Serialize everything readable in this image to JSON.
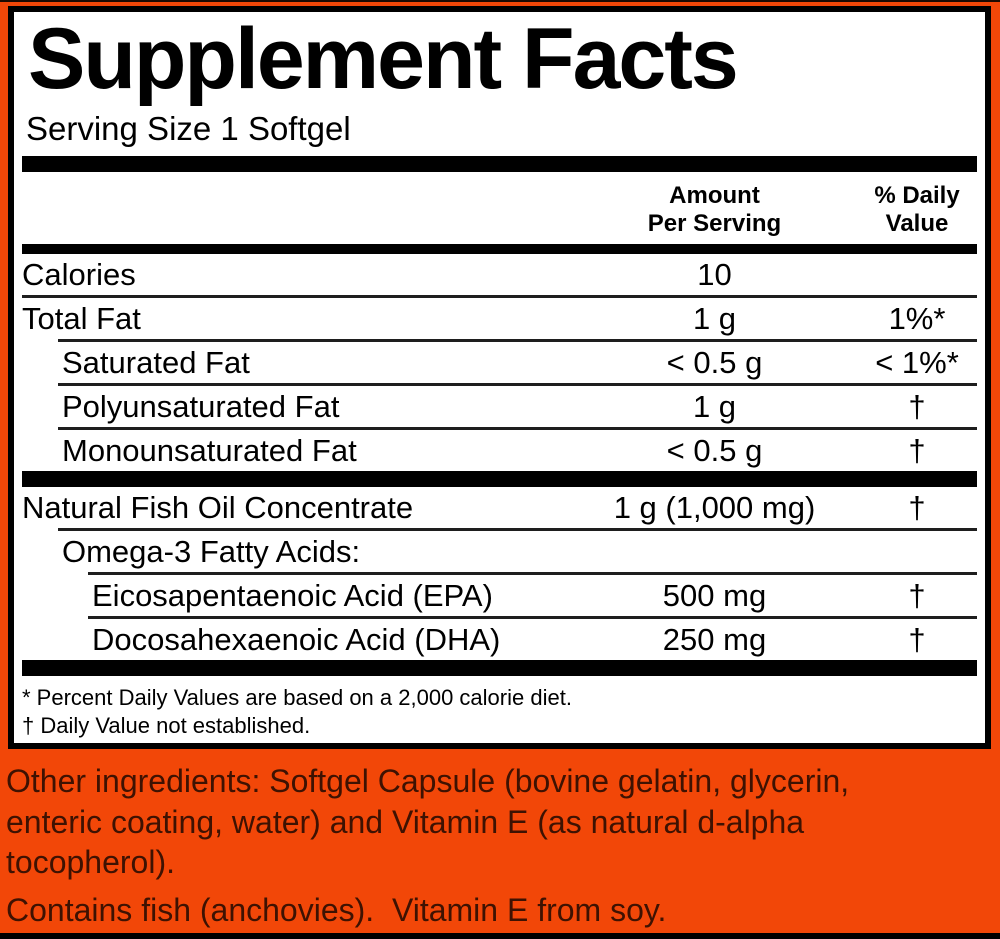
{
  "colors": {
    "background_orange": "#F24708",
    "panel_background": "#FFFFFF",
    "panel_border": "#000000",
    "ingredient_text": "#3E1202"
  },
  "panel": {
    "title": "Supplement Facts",
    "serving_size": "Serving Size 1 Softgel",
    "columns": {
      "amount_line1": "Amount",
      "amount_line2": "Per Serving",
      "dv_line1": "% Daily",
      "dv_line2": "Value"
    },
    "footnotes": [
      "* Percent Daily Values are based on a 2,000 calorie diet.",
      "† Daily Value not established."
    ]
  },
  "table": {
    "rows": [
      {
        "label": "Calories",
        "indent": 0,
        "amount": "10",
        "dv": "",
        "rule": "none"
      },
      {
        "label": "Total Fat",
        "indent": 0,
        "amount": "1 g",
        "dv": "1%*",
        "rule": "thin",
        "rule_indent": 0
      },
      {
        "label": "Saturated Fat",
        "indent": 1,
        "amount": "< 0.5 g",
        "dv": "< 1%*",
        "rule": "thin",
        "rule_indent": 1
      },
      {
        "label": "Polyunsaturated Fat",
        "indent": 1,
        "amount": "1 g",
        "dv": "†",
        "rule": "thin",
        "rule_indent": 1
      },
      {
        "label": "Monounsaturated Fat",
        "indent": 1,
        "amount": "< 0.5 g",
        "dv": "†",
        "rule": "thin",
        "rule_indent": 1
      },
      {
        "label": "Natural Fish Oil Concentrate",
        "indent": 0,
        "amount": "1 g (1,000 mg)",
        "dv": "†",
        "rule": "bar"
      },
      {
        "label": "Omega-3 Fatty Acids:",
        "indent": 1,
        "amount": "",
        "dv": "",
        "rule": "thin",
        "rule_indent": 1
      },
      {
        "label": "Eicosapentaenoic Acid (EPA)",
        "indent": 2,
        "amount": "500 mg",
        "dv": "†",
        "rule": "thin",
        "rule_indent": 2
      },
      {
        "label": "Docosahexaenoic Acid (DHA)",
        "indent": 2,
        "amount": "250 mg",
        "dv": "†",
        "rule": "thin",
        "rule_indent": 2
      }
    ]
  },
  "other_ingredients": "Other ingredients: Softgel Capsule (bovine gelatin, glycerin,\nenteric coating, water) and Vitamin E (as natural d-alpha\ntocopherol).",
  "contains_statement": "Contains fish (anchovies).  Vitamin E from soy."
}
